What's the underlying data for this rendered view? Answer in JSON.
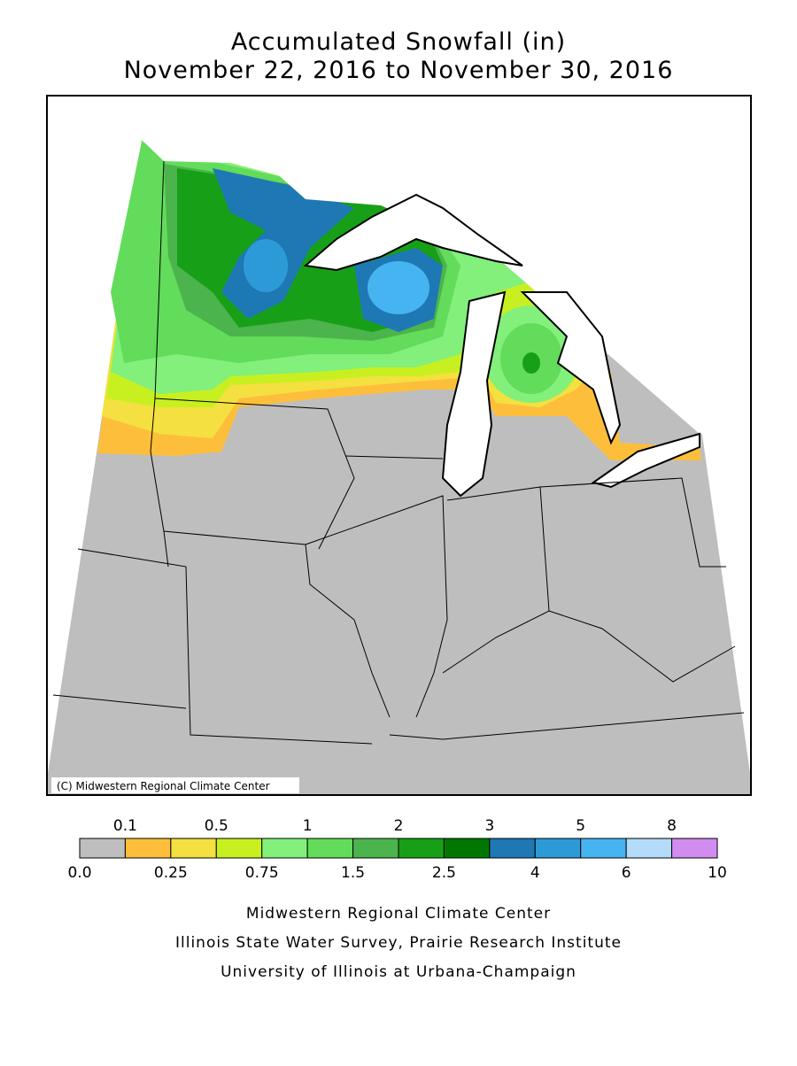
{
  "header": {
    "title": "Accumulated Snowfall (in)",
    "subtitle": "November 22, 2016 to November 30, 2016"
  },
  "map": {
    "credit": "(C) Midwestern Regional Climate Center"
  },
  "legend": {
    "colors": [
      "#bebebe",
      "#fdbf3b",
      "#f4e040",
      "#c8f020",
      "#82f07a",
      "#62dc5a",
      "#4cb44c",
      "#17a017",
      "#007800",
      "#1e78b4",
      "#2d9ad8",
      "#46b4f0",
      "#b4dcfa",
      "#d28cf0"
    ],
    "top_labels": [
      "0.1",
      "0.5",
      "1",
      "2",
      "3",
      "5",
      "8"
    ],
    "bottom_labels": [
      "0.0",
      "0.25",
      "0.75",
      "1.5",
      "2.5",
      "4",
      "6",
      "10"
    ]
  },
  "footer": {
    "lines": [
      "Midwestern Regional Climate Center",
      "Illinois State Water Survey, Prairie Research Institute",
      "University of Illinois at Urbana-Champaign"
    ]
  }
}
